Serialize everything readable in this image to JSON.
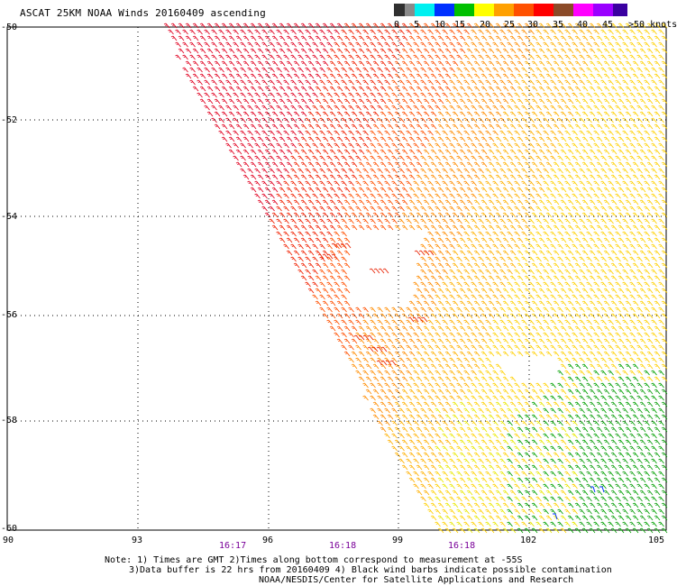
{
  "title": "ASCAT 25KM NOAA Winds 20160409 ascending",
  "scale": {
    "labels": [
      "0",
      "5",
      "10",
      "15",
      "20",
      "25",
      "30",
      "35",
      "40",
      "45",
      ">50 knots"
    ],
    "colors": [
      "#303030",
      "#8a8a8a",
      "#00f0f0",
      "#0030ff",
      "#00c000",
      "#ffff00",
      "#ffa000",
      "#ff5000",
      "#ff0000",
      "#8b4a28",
      "#ff00ff",
      "#9a00ff",
      "#3a00a0"
    ]
  },
  "axes": {
    "lat_labels": [
      "-50",
      "-52",
      "-54",
      "-56",
      "-58",
      "-60"
    ],
    "lon_labels": [
      "90",
      "93",
      "96",
      "99",
      "102",
      "105"
    ],
    "lat_range": [
      -60,
      -50
    ],
    "lon_range": [
      90,
      105
    ]
  },
  "times": [
    "16:17",
    "16:18",
    "16:18"
  ],
  "notes": {
    "line1": "Note: 1) Times are GMT 2)Times along bottom correspond to measurement at -55S",
    "line2": "3)Data buffer is 22 hrs from 20160409 4) Black wind barbs indicate possible contamination",
    "line3": "NOAA/NESDIS/Center for Satellite Applications and Research"
  }
}
